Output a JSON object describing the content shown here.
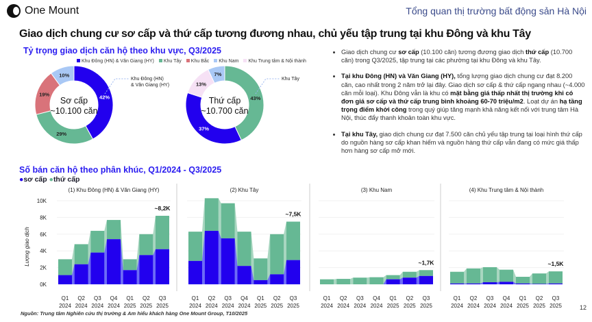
{
  "header": {
    "logo": "One Mount",
    "section": "Tổng quan thị trường bất động sản Hà Nội",
    "title": "Giao dịch chung cư sơ cấp và thứ cấp tương đương nhau, chủ yếu tập trung tại khu Đông và khu Tây",
    "page": "12"
  },
  "colors": {
    "east": "#2200ee",
    "west": "#66b894",
    "north": "#d9737a",
    "south": "#a9c8f5",
    "center": "#f6e1f5",
    "primary": "#2200ee",
    "secondary": "#66b894"
  },
  "bullets": [
    {
      "parts": [
        [
          "Giao dịch chung cư ",
          0
        ],
        [
          "sơ cấp",
          1
        ],
        [
          " (10.100 căn) tương đương giao dịch ",
          0
        ],
        [
          "thứ cấp",
          1
        ],
        [
          " (10.700 căn) trong Q3/2025, tập trung tại các phường tại khu Đông và khu Tây.",
          0
        ]
      ]
    },
    {
      "parts": [
        [
          "Tại khu Đông (HN) và Văn Giang (HY),",
          1
        ],
        [
          " tổng lượng giao dịch chung cư đạt 8.200 căn, cao nhất trong 2 năm trở lại đây. Giao dịch sơ cấp & thứ cấp ngang nhau (~4.000 căn mỗi loại). Khu Đông vẫn là khu có ",
          0
        ],
        [
          "mặt bằng giá thấp nhất thị trường khi có đơn giá sơ cấp và thứ cấp trung bình khoảng 60-70 triệu/m2",
          1
        ],
        [
          ". Loạt dự án ",
          0
        ],
        [
          "hạ tầng trọng điểm khởi công",
          1
        ],
        [
          " trong quý giúp tăng mạnh khả năng kết nối với trung tâm Hà Nội, thúc đẩy thanh khoản toàn khu vực.",
          0
        ]
      ]
    },
    {
      "parts": [
        [
          "Tại khu Tây,",
          1
        ],
        [
          " giao dịch chung cư đạt 7.500 căn chủ yếu tập trung tại loại hình thứ cấp do nguồn hàng sơ cấp khan hiếm và nguồn hàng thứ cấp vẫn đang có mức giá thấp hơn hàng sơ cấp mở mới.",
          0
        ]
      ]
    }
  ],
  "source": "Nguồn: Trung tâm Nghiên cứu thị trường & Am hiểu khách hàng One Mount Group, T10/2025",
  "chart_data": [
    {
      "type": "pie",
      "title": "Tỷ trọng giao dịch căn hộ theo khu vực, Q3/2025",
      "legend": [
        "Khu Đông (HN) & Văn Giang (HY)",
        "Khu Tây",
        "Khu Bắc",
        "Khu Nam",
        "Khu Trung tâm & Nội thành"
      ],
      "charts": [
        {
          "center_label": [
            "Sơ cấp",
            "~10.100 căn"
          ],
          "callout": [
            "Khu Đông (HN)",
            "& Văn Giang (HY)"
          ],
          "slices": [
            {
              "name": "Khu Đông (HN) & Văn Giang (HY)",
              "value": 42,
              "color": "#2200ee"
            },
            {
              "name": "Khu Tây",
              "value": 29,
              "color": "#66b894"
            },
            {
              "name": "Khu Bắc",
              "value": 19,
              "color": "#d9737a"
            },
            {
              "name": "Khu Nam",
              "value": 10,
              "color": "#a9c8f5"
            }
          ]
        },
        {
          "center_label": [
            "Thứ cấp",
            "~10.700 căn"
          ],
          "callout": [
            "Khu Tây"
          ],
          "slices": [
            {
              "name": "Khu Tây",
              "value": 43,
              "color": "#66b894"
            },
            {
              "name": "Khu Đông (HN) & Văn Giang (HY)",
              "value": 37,
              "color": "#2200ee"
            },
            {
              "name": "Khu Trung tâm & Nội thành",
              "value": 13,
              "color": "#f6e1f5"
            },
            {
              "name": "Khu Nam",
              "value": 7,
              "color": "#a9c8f5"
            }
          ]
        }
      ]
    },
    {
      "type": "bar",
      "stacked": true,
      "title": "Số bán căn hộ theo phân khúc, Q1/2024 - Q3/2025",
      "legend": [
        "sơ cấp",
        "thứ cấp"
      ],
      "ylabel": "Lượng giao dịch",
      "ylim": [
        0,
        10
      ],
      "yticks": [
        "0K",
        "2K",
        "4K",
        "6K",
        "8K",
        "10K"
      ],
      "categories": [
        [
          "Q1",
          "2024"
        ],
        [
          "Q2",
          "2024"
        ],
        [
          "Q3",
          "2024"
        ],
        [
          "Q4",
          "2024"
        ],
        [
          "Q1",
          "2025"
        ],
        [
          "Q2",
          "2025"
        ],
        [
          "Q3",
          "2025"
        ]
      ],
      "panels": [
        {
          "title": "(1) Khu Đông (HN) & Văn Giang (HY)",
          "annotation": "~8,2K",
          "primary": [
            1.1,
            2.4,
            3.8,
            5.4,
            1.7,
            3.5,
            4.2
          ],
          "secondary": [
            1.9,
            2.4,
            2.6,
            2.3,
            1.3,
            2.5,
            4.0
          ]
        },
        {
          "title": "(2) Khu Tây",
          "annotation": "~7,5K",
          "primary": [
            2.8,
            6.4,
            5.5,
            2.2,
            0.5,
            1.2,
            2.9
          ],
          "secondary": [
            3.5,
            3.9,
            4.2,
            4.1,
            2.6,
            4.8,
            4.6
          ]
        },
        {
          "title": "(3) Khu Nam",
          "annotation": "~1,7K",
          "primary": [
            0,
            0,
            0,
            0,
            0.6,
            0.8,
            1.0
          ],
          "secondary": [
            0.6,
            0.65,
            0.8,
            0.85,
            0.5,
            0.7,
            0.7
          ]
        },
        {
          "title": "(4) Khu Trung tâm & Nội thành",
          "annotation": "~1,5K",
          "primary": [
            0.1,
            0.1,
            0.25,
            0.3,
            0.1,
            0.05,
            0.1
          ],
          "secondary": [
            1.4,
            1.8,
            1.8,
            1.45,
            0.8,
            1.25,
            1.45
          ]
        }
      ]
    }
  ]
}
